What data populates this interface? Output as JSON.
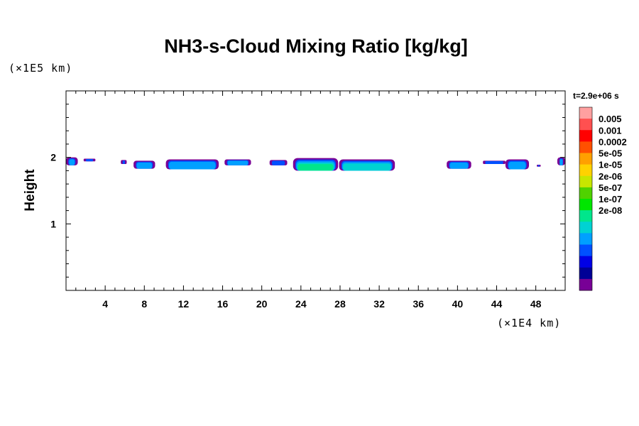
{
  "chart_data": {
    "type": "heatmap",
    "title": "NH3-s-Cloud Mixing Ratio [kg/kg]",
    "xlabel": "",
    "ylabel": "Height",
    "x_unit": "(×1E4 km)",
    "y_unit": "(×1E5 km)",
    "time_label": "t=2.9e+06 s",
    "xlim": [
      0,
      51
    ],
    "ylim": [
      0,
      3
    ],
    "x_ticks": [
      4,
      8,
      12,
      16,
      20,
      24,
      28,
      32,
      36,
      40,
      44,
      48
    ],
    "y_ticks": [
      1,
      2
    ],
    "x_minor_step": 1,
    "y_minor_step": 0.2,
    "colorbar": {
      "labels": [
        "0.005",
        "0.001",
        "0.0002",
        "5e-05",
        "1e-05",
        "2e-06",
        "5e-07",
        "1e-07",
        "2e-08"
      ],
      "colors": [
        "#ffa0a0",
        "#ff5050",
        "#ff0000",
        "#ff5000",
        "#ffa000",
        "#ffd200",
        "#c8e600",
        "#50d200",
        "#00e600",
        "#00e68c",
        "#00d2d2",
        "#00a0ff",
        "#0050ff",
        "#0000e6",
        "#000096",
        "#780096"
      ]
    },
    "cloud_patches": [
      {
        "x0": 0.0,
        "x1": 1.2,
        "y_top": 2.0,
        "y_bottom": 1.88,
        "peak": 1
      },
      {
        "x0": 1.8,
        "x1": 3.0,
        "y_top": 1.98,
        "y_bottom": 1.94,
        "peak": 0
      },
      {
        "x0": 5.6,
        "x1": 6.2,
        "y_top": 1.96,
        "y_bottom": 1.9,
        "peak": 0
      },
      {
        "x0": 6.9,
        "x1": 9.1,
        "y_top": 1.95,
        "y_bottom": 1.83,
        "peak": 1
      },
      {
        "x0": 10.2,
        "x1": 15.6,
        "y_top": 1.97,
        "y_bottom": 1.82,
        "peak": 1
      },
      {
        "x0": 16.2,
        "x1": 18.9,
        "y_top": 1.97,
        "y_bottom": 1.88,
        "peak": 1
      },
      {
        "x0": 20.8,
        "x1": 22.6,
        "y_top": 1.96,
        "y_bottom": 1.88,
        "peak": 0
      },
      {
        "x0": 23.2,
        "x1": 27.8,
        "y_top": 1.99,
        "y_bottom": 1.8,
        "peak": 3
      },
      {
        "x0": 27.9,
        "x1": 33.6,
        "y_top": 1.97,
        "y_bottom": 1.8,
        "peak": 2
      },
      {
        "x0": 38.9,
        "x1": 41.4,
        "y_top": 1.95,
        "y_bottom": 1.83,
        "peak": 1
      },
      {
        "x0": 42.6,
        "x1": 44.9,
        "y_top": 1.95,
        "y_bottom": 1.9,
        "peak": 0
      },
      {
        "x0": 44.9,
        "x1": 47.3,
        "y_top": 1.97,
        "y_bottom": 1.82,
        "peak": 1
      },
      {
        "x0": 48.1,
        "x1": 48.5,
        "y_top": 1.89,
        "y_bottom": 1.86,
        "peak": 0
      },
      {
        "x0": 50.2,
        "x1": 51.0,
        "y_top": 2.0,
        "y_bottom": 1.88,
        "peak": 1
      }
    ]
  }
}
